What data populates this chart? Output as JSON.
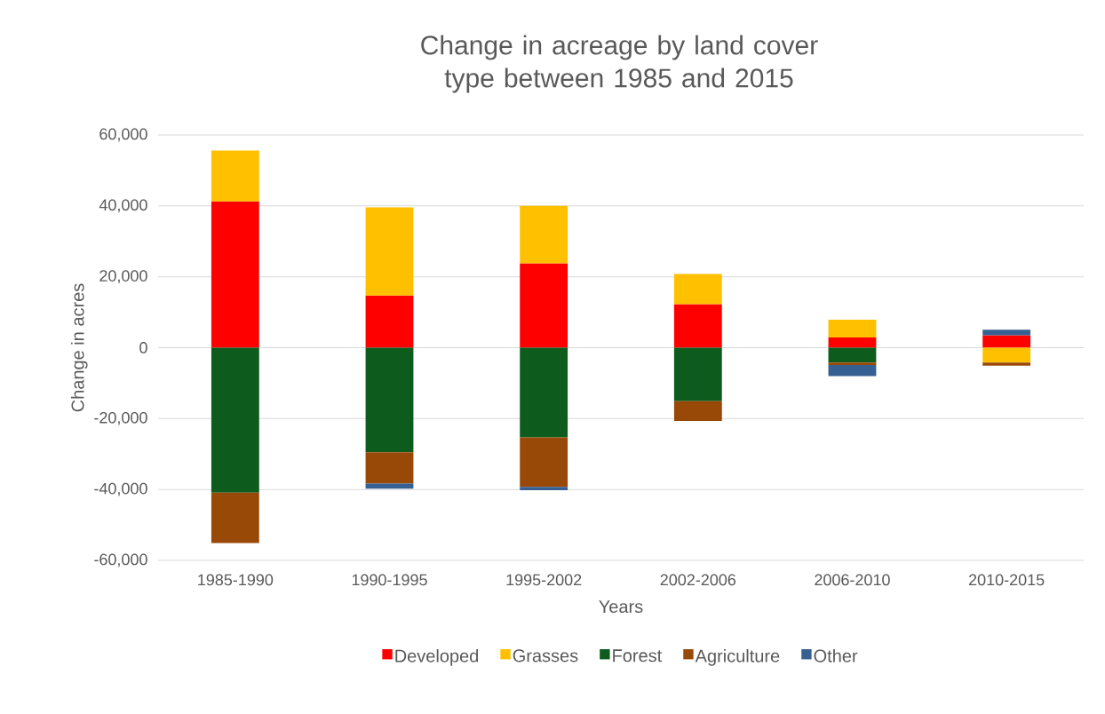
{
  "chart_data": {
    "type": "bar",
    "stacked": true,
    "title": "Change in acreage by land cover type between 1985 and 2015",
    "xlabel": "Years",
    "ylabel": "Change in acres",
    "categories": [
      "1985-1990",
      "1990-1995",
      "1995-2002",
      "2002-2006",
      "2006-2010",
      "2010-2015"
    ],
    "series": [
      {
        "name": "Developed",
        "color": "#ff0000",
        "values": [
          41300,
          14700,
          23800,
          12300,
          2900,
          3500
        ]
      },
      {
        "name": "Grasses",
        "color": "#ffc000",
        "values": [
          14300,
          24900,
          16200,
          8500,
          5000,
          -4200
        ]
      },
      {
        "name": "Forest",
        "color": "#0e5c1d",
        "values": [
          -40900,
          -29500,
          -25300,
          -15100,
          -4200,
          0
        ]
      },
      {
        "name": "Agriculture",
        "color": "#984807",
        "values": [
          -14200,
          -8800,
          -14000,
          -5600,
          -700,
          -900
        ]
      },
      {
        "name": "Other",
        "color": "#376092",
        "values": [
          0,
          -1500,
          -900,
          0,
          -3100,
          1600
        ]
      }
    ],
    "ylim": [
      -60000,
      60000
    ],
    "yticks": [
      {
        "value": -60000,
        "label": "-60,000"
      },
      {
        "value": -40000,
        "label": "-40,000"
      },
      {
        "value": -20000,
        "label": "-20,000"
      },
      0,
      {
        "value": 20000,
        "label": "20,000"
      },
      {
        "value": 40000,
        "label": "40,000"
      },
      {
        "value": 60000,
        "label": "60,000"
      }
    ],
    "grid": "y",
    "legend": "bottom"
  }
}
